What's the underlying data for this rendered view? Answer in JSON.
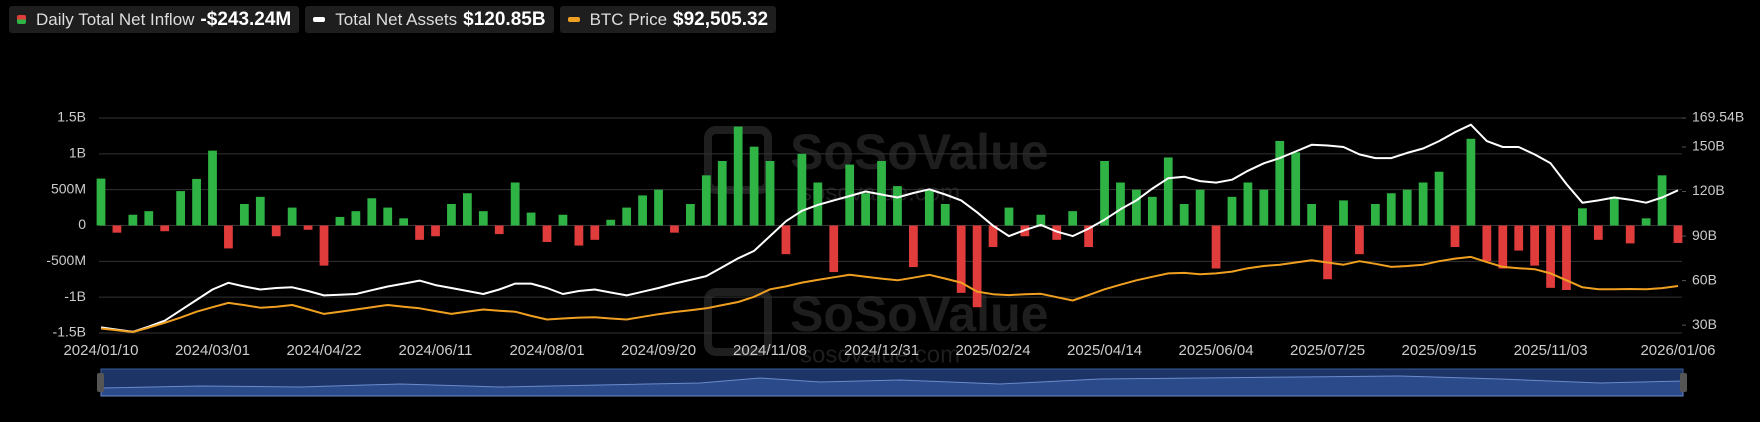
{
  "chart_data": {
    "type": "combo",
    "watermark": {
      "brand": "SoSoValue",
      "site": "sosovalue.com"
    },
    "categories": [
      "2024/01/10",
      null,
      null,
      null,
      null,
      null,
      null,
      "2024/03/01",
      null,
      null,
      null,
      null,
      null,
      null,
      "2024/04/22",
      null,
      null,
      null,
      null,
      null,
      null,
      "2024/06/11",
      null,
      null,
      null,
      null,
      null,
      null,
      "2024/08/01",
      null,
      null,
      null,
      null,
      null,
      null,
      "2024/09/20",
      null,
      null,
      null,
      null,
      null,
      null,
      "2024/11/08",
      null,
      null,
      null,
      null,
      null,
      null,
      "2024/12/31",
      null,
      null,
      null,
      null,
      null,
      null,
      "2025/02/24",
      null,
      null,
      null,
      null,
      null,
      null,
      "2025/04/14",
      null,
      null,
      null,
      null,
      null,
      null,
      "2025/06/04",
      null,
      null,
      null,
      null,
      null,
      null,
      "2025/07/25",
      null,
      null,
      null,
      null,
      null,
      null,
      "2025/09/15",
      null,
      null,
      null,
      null,
      null,
      null,
      "2025/11/03",
      null,
      null,
      null,
      null,
      null,
      null,
      null,
      "2026/01/06"
    ],
    "ylim": [
      -1500,
      1500
    ],
    "yticks": [
      {
        "value": -1500,
        "label": "-1.5B"
      },
      {
        "value": -1000,
        "label": "-1B"
      },
      {
        "value": -500,
        "label": "-500M"
      },
      0,
      {
        "value": 500,
        "label": "500M"
      },
      {
        "value": 1000,
        "label": "1B"
      },
      {
        "value": 1500,
        "label": "1.5B"
      }
    ],
    "y2lim": [
      24.7,
      169.54
    ],
    "y2ticks": [
      {
        "value": 30,
        "label": "30B"
      },
      {
        "value": 60,
        "label": "60B"
      },
      {
        "value": 90,
        "label": "90B"
      },
      {
        "value": 120,
        "label": "120B"
      },
      {
        "value": 150,
        "label": "150B"
      },
      {
        "value": 169.54,
        "label": "169.54B"
      }
    ],
    "y3lim": [
      38300,
      286000
    ],
    "grid": true,
    "series": [
      {
        "name": "Daily Total Net Inflow",
        "type": "bar",
        "color": "#2fb344",
        "negative_color": "#e03c3c",
        "legend_value": {
          "value": -243.24,
          "label": "-$243.24M"
        },
        "values": [
          655,
          -100,
          150,
          200,
          -80,
          480,
          650,
          1045,
          -320,
          300,
          400,
          -150,
          250,
          -60,
          -560,
          120,
          200,
          380,
          250,
          100,
          -200,
          -150,
          300,
          450,
          200,
          -120,
          600,
          180,
          -230,
          150,
          -280,
          -200,
          80,
          250,
          420,
          500,
          -100,
          300,
          700,
          900,
          1380,
          1100,
          900,
          -400,
          1000,
          600,
          -650,
          850,
          450,
          900,
          550,
          -580,
          500,
          300,
          -940,
          -1140,
          -300,
          250,
          -150,
          150,
          -200,
          200,
          -300,
          900,
          600,
          500,
          400,
          950,
          300,
          500,
          -600,
          400,
          600,
          500,
          1180,
          1020,
          300,
          -750,
          350,
          -400,
          300,
          450,
          500,
          600,
          750,
          -300,
          1210,
          -500,
          -600,
          -350,
          -560,
          -870,
          -900,
          240,
          -200,
          400,
          -250,
          100,
          700,
          -243.24
        ]
      },
      {
        "name": "Total Net Assets",
        "type": "line",
        "axis": "y2",
        "color": "#ffffff",
        "legend_value": {
          "value": 120.85,
          "label": "$120.85B"
        },
        "values": [
          28.5,
          27,
          25.5,
          29,
          33,
          40,
          47,
          54,
          58.5,
          56,
          54,
          55,
          55.5,
          53,
          50,
          50.5,
          51,
          53.5,
          56,
          58,
          60,
          57,
          55,
          53,
          51,
          54,
          58,
          58,
          55,
          51,
          53,
          54,
          52,
          50,
          52.5,
          55,
          58,
          60.5,
          63,
          69,
          75,
          80,
          90,
          100,
          107,
          111,
          114,
          117,
          120,
          118,
          116,
          119,
          121.5,
          118,
          114,
          106,
          97,
          90,
          94,
          97.5,
          93,
          90,
          95,
          101,
          108,
          114,
          122,
          129,
          130,
          127,
          126,
          128,
          134,
          139,
          142.5,
          147,
          151.5,
          151,
          150,
          145,
          142.5,
          142.5,
          146,
          149,
          154,
          160,
          165,
          154,
          150,
          150,
          145,
          139,
          125,
          112.5,
          114,
          116,
          114.5,
          112.5,
          116,
          120.85
        ]
      },
      {
        "name": "BTC Price",
        "type": "line",
        "axis": "y3",
        "color": "#f0a020",
        "legend_value": {
          "value": 92505.32,
          "label": "$92,505.32"
        },
        "values": [
          43500,
          41500,
          39500,
          44500,
          50000,
          56000,
          62800,
          68000,
          73000,
          70500,
          67500,
          68500,
          70600,
          65500,
          60300,
          62800,
          65400,
          68000,
          70600,
          68500,
          66700,
          63500,
          60300,
          63000,
          65400,
          64000,
          62800,
          58000,
          53800,
          55000,
          56000,
          56400,
          55000,
          53800,
          57000,
          60000,
          62500,
          64500,
          66700,
          70500,
          74000,
          80000,
          88600,
          92000,
          96400,
          99500,
          102500,
          105400,
          103000,
          101000,
          99000,
          102000,
          105400,
          101000,
          96400,
          86000,
          83000,
          82000,
          83000,
          83500,
          79500,
          75700,
          82000,
          88600,
          94000,
          99000,
          103000,
          107000,
          107500,
          106000,
          107000,
          109000,
          113000,
          115500,
          117000,
          119500,
          122000,
          119500,
          117000,
          121000,
          118000,
          114400,
          115500,
          117000,
          121000,
          124000,
          126000,
          120000,
          114400,
          113000,
          111800,
          107000,
          99000,
          91000,
          88600,
          88600,
          89000,
          88600,
          90000,
          92505.32
        ]
      }
    ]
  }
}
